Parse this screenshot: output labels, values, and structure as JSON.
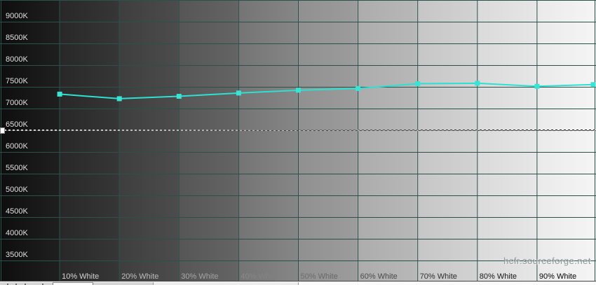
{
  "watermark": "hcfr.sourceforge.net",
  "colors": {
    "series_line": "#2de1d2",
    "series_marker": "#3ae4d5",
    "grid": "#2b5148",
    "reference_line": "#ffffff",
    "y_label_text": "#e4e4e4",
    "background_left": "#0e0e0e",
    "background_right": "#f5f5f5"
  },
  "chart_data": {
    "type": "line",
    "x_unit": "percent_white",
    "x": [
      10,
      20,
      30,
      40,
      50,
      60,
      70,
      80,
      90,
      100
    ],
    "x_tick_labels": [
      "10% White",
      "20% White",
      "30% White",
      "40% White",
      "50% White",
      "60% White",
      "70% White",
      "80% White",
      "90% White"
    ],
    "y_tick_labels": [
      "9000K",
      "8500K",
      "8000K",
      "7500K",
      "7000K",
      "6500K",
      "6000K",
      "5500K",
      "5000K",
      "4500K",
      "4000K",
      "3500K"
    ],
    "y_tick_values": [
      9000,
      8500,
      8000,
      7500,
      7000,
      6500,
      6000,
      5500,
      5000,
      4500,
      4000,
      3500
    ],
    "series": [
      {
        "name": "color-temperature",
        "values_kelvin": [
          7340,
          7235,
          7290,
          7365,
          7430,
          7470,
          7580,
          7590,
          7520,
          7560
        ]
      }
    ],
    "reference_line": {
      "value_kelvin": 6500,
      "style": "dashed"
    },
    "axis": {
      "y_top_value": 9500,
      "y_step": 500,
      "x_step_percent": 10,
      "grid": true,
      "legend": false
    }
  }
}
